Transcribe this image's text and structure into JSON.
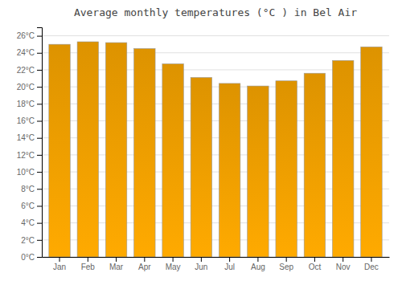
{
  "chart_data": {
    "type": "bar",
    "title": "Average monthly temperatures (°C ) in Bel Air",
    "categories": [
      "Jan",
      "Feb",
      "Mar",
      "Apr",
      "May",
      "Jun",
      "Jul",
      "Aug",
      "Sep",
      "Oct",
      "Nov",
      "Dec"
    ],
    "values": [
      25.0,
      25.3,
      25.2,
      24.5,
      22.7,
      21.1,
      20.4,
      20.1,
      20.7,
      21.6,
      23.1,
      24.7
    ],
    "color": "#FFAA00",
    "ylim": [
      0,
      27
    ],
    "yticks": [
      {
        "value": 0,
        "label": "0°C"
      },
      {
        "value": 2,
        "label": "2°C"
      },
      {
        "value": 4,
        "label": "4°C"
      },
      {
        "value": 6,
        "label": "6°C"
      },
      {
        "value": 8,
        "label": "8°C"
      },
      {
        "value": 10,
        "label": "10°C"
      },
      {
        "value": 12,
        "label": "12°C"
      },
      {
        "value": 14,
        "label": "14°C"
      },
      {
        "value": 16,
        "label": "16°C"
      },
      {
        "value": 18,
        "label": "18°C"
      },
      {
        "value": 20,
        "label": "20°C"
      },
      {
        "value": 22,
        "label": "22°C"
      },
      {
        "value": 24,
        "label": "24°C"
      },
      {
        "value": 26,
        "label": "26°C"
      }
    ],
    "grid": true
  }
}
